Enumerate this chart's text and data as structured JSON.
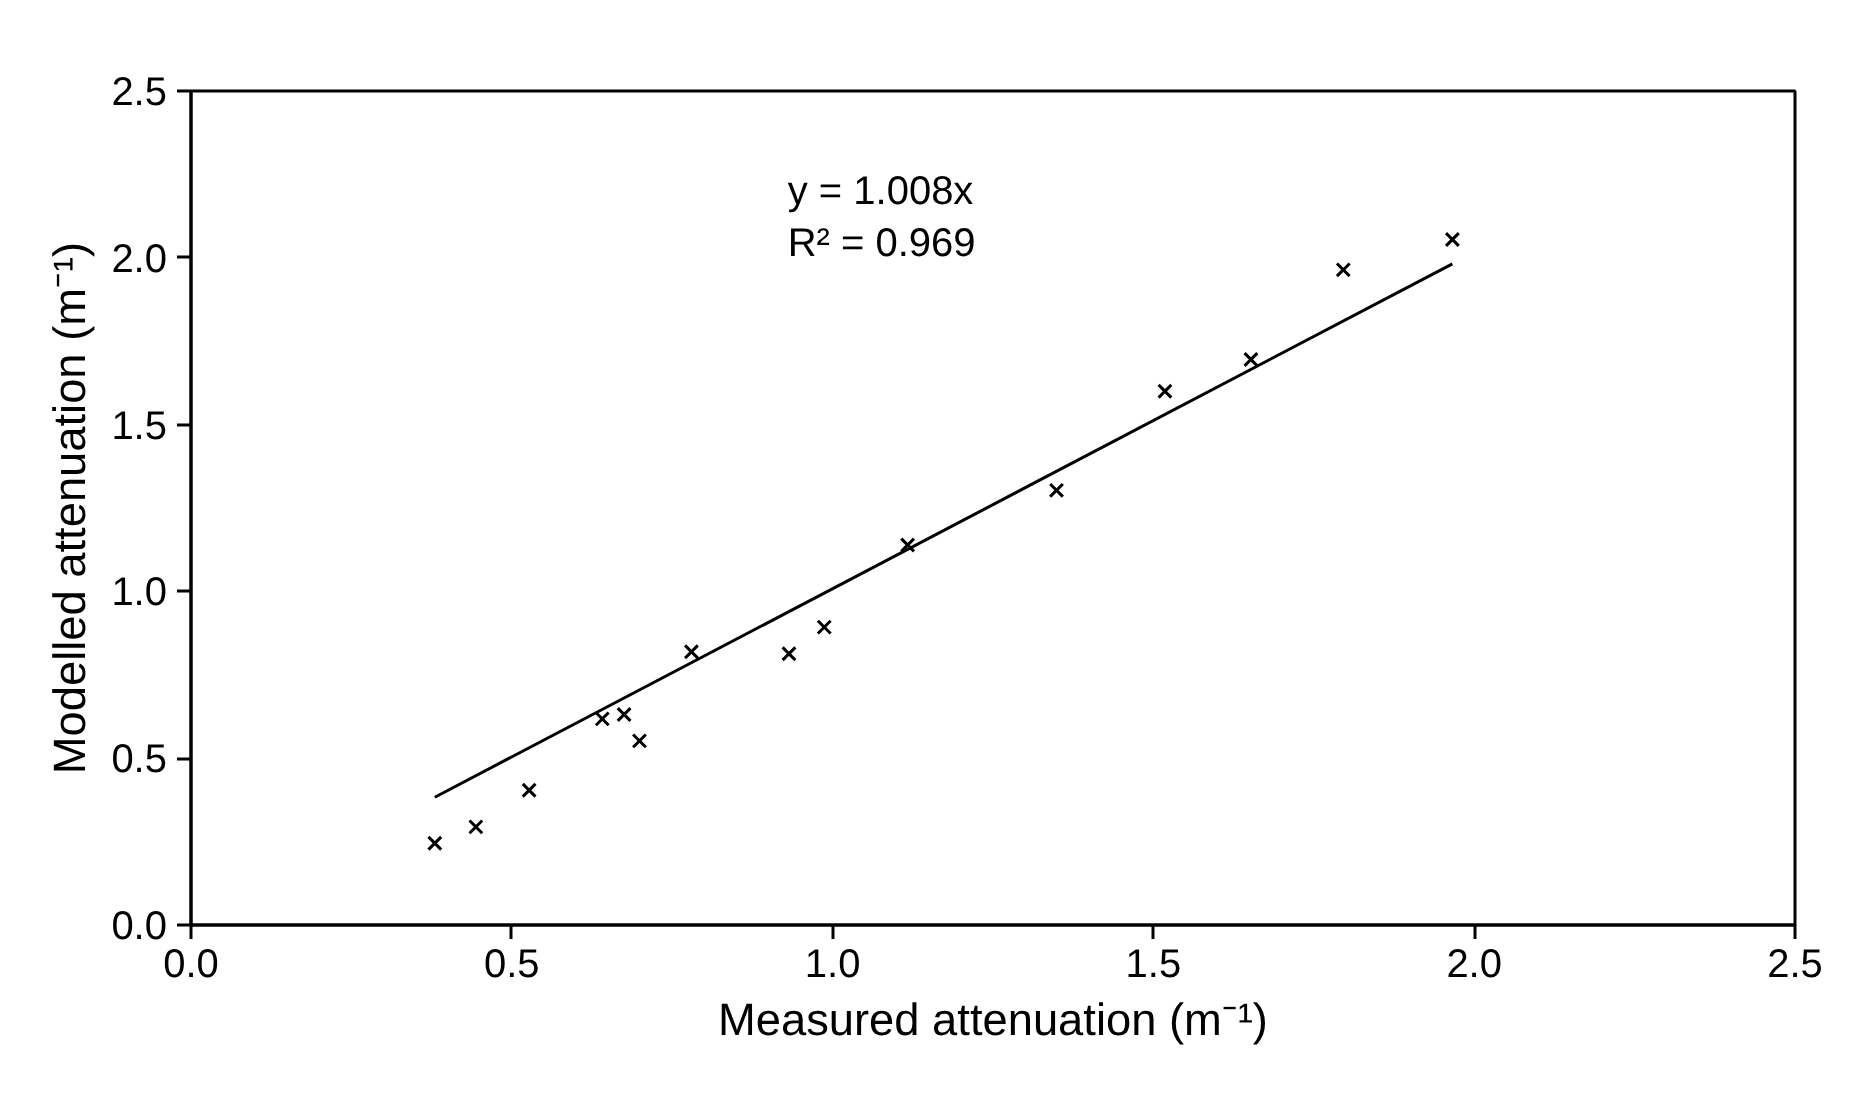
{
  "chart_data": {
    "type": "scatter",
    "xlabel": "Measured attenuation (m⁻¹)",
    "ylabel": "Modelled attenuation (m⁻¹)",
    "xlim": [
      0,
      2.5
    ],
    "ylim": [
      0,
      2.5
    ],
    "xticks": [
      {
        "value": 0,
        "label": "0.0"
      },
      {
        "value": 0.5,
        "label": "0.5"
      },
      {
        "value": 1,
        "label": "1.0"
      },
      {
        "value": 1.5,
        "label": "1.5"
      },
      {
        "value": 2,
        "label": "2.0"
      },
      {
        "value": 2.5,
        "label": "2.5"
      }
    ],
    "yticks": [
      {
        "value": 0,
        "label": "0.0"
      },
      {
        "value": 0.5,
        "label": "0.5"
      },
      {
        "value": 1,
        "label": "1.0"
      },
      {
        "value": 1.5,
        "label": "1.5"
      },
      {
        "value": 2,
        "label": "2.0"
      },
      {
        "value": 2.5,
        "label": "2.5"
      }
    ],
    "grid": false,
    "annotations": [
      "y = 1.008x",
      "R² = 0.969"
    ],
    "series": [
      {
        "marker": "cross",
        "color": "#000000",
        "x": [
          0.38,
          0.444,
          0.527,
          0.641,
          0.675,
          0.699,
          0.78,
          0.932,
          0.987,
          1.117,
          1.349,
          1.518,
          1.652,
          1.796,
          1.966
        ],
        "values": [
          0.245,
          0.294,
          0.404,
          0.618,
          0.631,
          0.552,
          0.819,
          0.813,
          0.893,
          1.139,
          1.303,
          1.6,
          1.695,
          1.964,
          2.055
        ]
      },
      {
        "type": "line",
        "color": "#000000",
        "line_style": "solid",
        "x": [
          0.38,
          1.966
        ],
        "values": [
          0.383,
          1.982
        ]
      }
    ]
  }
}
